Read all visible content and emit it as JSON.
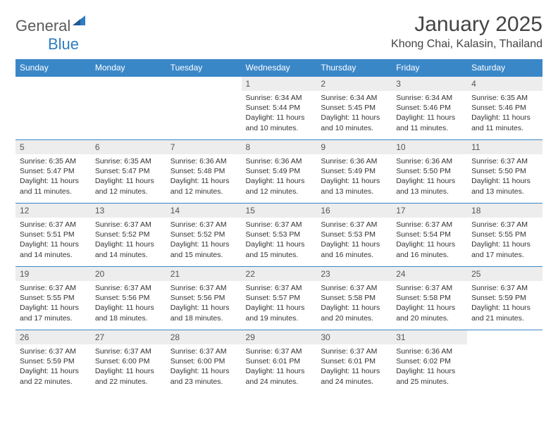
{
  "logo": {
    "part1": "General",
    "part2": "Blue"
  },
  "title": "January 2025",
  "location": "Khong Chai, Kalasin, Thailand",
  "colors": {
    "header_bg": "#3a87c8",
    "header_text": "#ffffff",
    "daynum_bg": "#ededed",
    "border": "#3a87c8",
    "logo_gray": "#5a5a5a",
    "logo_blue": "#2f7cc0"
  },
  "day_headers": [
    "Sunday",
    "Monday",
    "Tuesday",
    "Wednesday",
    "Thursday",
    "Friday",
    "Saturday"
  ],
  "weeks": [
    [
      null,
      null,
      null,
      {
        "n": "1",
        "sr": "Sunrise: 6:34 AM",
        "ss": "Sunset: 5:44 PM",
        "dl": "Daylight: 11 hours and 10 minutes."
      },
      {
        "n": "2",
        "sr": "Sunrise: 6:34 AM",
        "ss": "Sunset: 5:45 PM",
        "dl": "Daylight: 11 hours and 10 minutes."
      },
      {
        "n": "3",
        "sr": "Sunrise: 6:34 AM",
        "ss": "Sunset: 5:46 PM",
        "dl": "Daylight: 11 hours and 11 minutes."
      },
      {
        "n": "4",
        "sr": "Sunrise: 6:35 AM",
        "ss": "Sunset: 5:46 PM",
        "dl": "Daylight: 11 hours and 11 minutes."
      }
    ],
    [
      {
        "n": "5",
        "sr": "Sunrise: 6:35 AM",
        "ss": "Sunset: 5:47 PM",
        "dl": "Daylight: 11 hours and 11 minutes."
      },
      {
        "n": "6",
        "sr": "Sunrise: 6:35 AM",
        "ss": "Sunset: 5:47 PM",
        "dl": "Daylight: 11 hours and 12 minutes."
      },
      {
        "n": "7",
        "sr": "Sunrise: 6:36 AM",
        "ss": "Sunset: 5:48 PM",
        "dl": "Daylight: 11 hours and 12 minutes."
      },
      {
        "n": "8",
        "sr": "Sunrise: 6:36 AM",
        "ss": "Sunset: 5:49 PM",
        "dl": "Daylight: 11 hours and 12 minutes."
      },
      {
        "n": "9",
        "sr": "Sunrise: 6:36 AM",
        "ss": "Sunset: 5:49 PM",
        "dl": "Daylight: 11 hours and 13 minutes."
      },
      {
        "n": "10",
        "sr": "Sunrise: 6:36 AM",
        "ss": "Sunset: 5:50 PM",
        "dl": "Daylight: 11 hours and 13 minutes."
      },
      {
        "n": "11",
        "sr": "Sunrise: 6:37 AM",
        "ss": "Sunset: 5:50 PM",
        "dl": "Daylight: 11 hours and 13 minutes."
      }
    ],
    [
      {
        "n": "12",
        "sr": "Sunrise: 6:37 AM",
        "ss": "Sunset: 5:51 PM",
        "dl": "Daylight: 11 hours and 14 minutes."
      },
      {
        "n": "13",
        "sr": "Sunrise: 6:37 AM",
        "ss": "Sunset: 5:52 PM",
        "dl": "Daylight: 11 hours and 14 minutes."
      },
      {
        "n": "14",
        "sr": "Sunrise: 6:37 AM",
        "ss": "Sunset: 5:52 PM",
        "dl": "Daylight: 11 hours and 15 minutes."
      },
      {
        "n": "15",
        "sr": "Sunrise: 6:37 AM",
        "ss": "Sunset: 5:53 PM",
        "dl": "Daylight: 11 hours and 15 minutes."
      },
      {
        "n": "16",
        "sr": "Sunrise: 6:37 AM",
        "ss": "Sunset: 5:53 PM",
        "dl": "Daylight: 11 hours and 16 minutes."
      },
      {
        "n": "17",
        "sr": "Sunrise: 6:37 AM",
        "ss": "Sunset: 5:54 PM",
        "dl": "Daylight: 11 hours and 16 minutes."
      },
      {
        "n": "18",
        "sr": "Sunrise: 6:37 AM",
        "ss": "Sunset: 5:55 PM",
        "dl": "Daylight: 11 hours and 17 minutes."
      }
    ],
    [
      {
        "n": "19",
        "sr": "Sunrise: 6:37 AM",
        "ss": "Sunset: 5:55 PM",
        "dl": "Daylight: 11 hours and 17 minutes."
      },
      {
        "n": "20",
        "sr": "Sunrise: 6:37 AM",
        "ss": "Sunset: 5:56 PM",
        "dl": "Daylight: 11 hours and 18 minutes."
      },
      {
        "n": "21",
        "sr": "Sunrise: 6:37 AM",
        "ss": "Sunset: 5:56 PM",
        "dl": "Daylight: 11 hours and 18 minutes."
      },
      {
        "n": "22",
        "sr": "Sunrise: 6:37 AM",
        "ss": "Sunset: 5:57 PM",
        "dl": "Daylight: 11 hours and 19 minutes."
      },
      {
        "n": "23",
        "sr": "Sunrise: 6:37 AM",
        "ss": "Sunset: 5:58 PM",
        "dl": "Daylight: 11 hours and 20 minutes."
      },
      {
        "n": "24",
        "sr": "Sunrise: 6:37 AM",
        "ss": "Sunset: 5:58 PM",
        "dl": "Daylight: 11 hours and 20 minutes."
      },
      {
        "n": "25",
        "sr": "Sunrise: 6:37 AM",
        "ss": "Sunset: 5:59 PM",
        "dl": "Daylight: 11 hours and 21 minutes."
      }
    ],
    [
      {
        "n": "26",
        "sr": "Sunrise: 6:37 AM",
        "ss": "Sunset: 5:59 PM",
        "dl": "Daylight: 11 hours and 22 minutes."
      },
      {
        "n": "27",
        "sr": "Sunrise: 6:37 AM",
        "ss": "Sunset: 6:00 PM",
        "dl": "Daylight: 11 hours and 22 minutes."
      },
      {
        "n": "28",
        "sr": "Sunrise: 6:37 AM",
        "ss": "Sunset: 6:00 PM",
        "dl": "Daylight: 11 hours and 23 minutes."
      },
      {
        "n": "29",
        "sr": "Sunrise: 6:37 AM",
        "ss": "Sunset: 6:01 PM",
        "dl": "Daylight: 11 hours and 24 minutes."
      },
      {
        "n": "30",
        "sr": "Sunrise: 6:37 AM",
        "ss": "Sunset: 6:01 PM",
        "dl": "Daylight: 11 hours and 24 minutes."
      },
      {
        "n": "31",
        "sr": "Sunrise: 6:36 AM",
        "ss": "Sunset: 6:02 PM",
        "dl": "Daylight: 11 hours and 25 minutes."
      },
      null
    ]
  ]
}
